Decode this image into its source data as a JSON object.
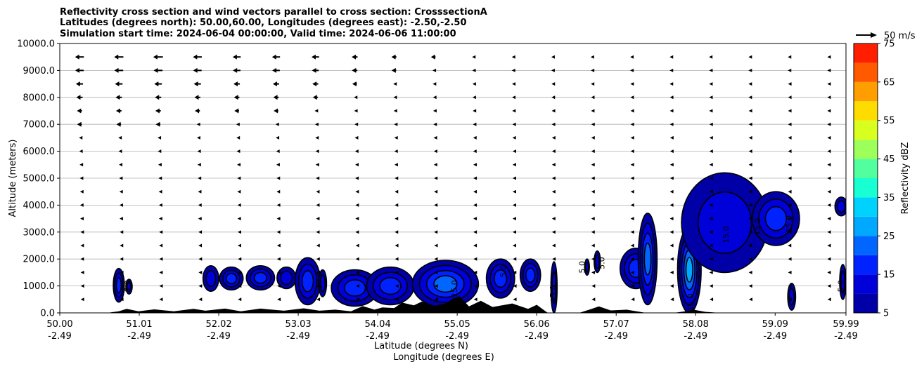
{
  "chart_data": {
    "type": "heatmap",
    "title_lines": [
      "Reflectivity cross section and wind vectors parallel to cross section: CrosssectionA",
      "Latitudes (degrees north): 50.00,60.00, Longitudes (degrees east): -2.50,-2.50",
      "Simulation start time: 2024-06-04 00:00:00, Valid time: 2024-06-06 11:00:00"
    ],
    "ylabel": "Altitude (meters)",
    "xlabel_lines": [
      "Latitude (degrees N)",
      "Longitude (degrees E)"
    ],
    "ylim": [
      0,
      10000
    ],
    "xlim": [
      50.0,
      59.99
    ],
    "y_ticks": [
      "0.0",
      "1000.0",
      "2000.0",
      "3000.0",
      "4000.0",
      "5000.0",
      "6000.0",
      "7000.0",
      "8000.0",
      "9000.0",
      "10000.0"
    ],
    "x_ticks": [
      {
        "lat": "50.00",
        "lon": "-2.49"
      },
      {
        "lat": "51.01",
        "lon": "-2.49"
      },
      {
        "lat": "52.02",
        "lon": "-2.49"
      },
      {
        "lat": "53.03",
        "lon": "-2.49"
      },
      {
        "lat": "54.04",
        "lon": "-2.49"
      },
      {
        "lat": "55.05",
        "lon": "-2.49"
      },
      {
        "lat": "56.06",
        "lon": "-2.49"
      },
      {
        "lat": "57.07",
        "lon": "-2.49"
      },
      {
        "lat": "58.08",
        "lon": "-2.49"
      },
      {
        "lat": "59.09",
        "lon": "-2.49"
      },
      {
        "lat": "59.99",
        "lon": "-2.49"
      }
    ],
    "grid": "horizontal",
    "colorbar": {
      "label": "Reflectivity dBZ",
      "tick_labels": [
        "5",
        "15",
        "25",
        "35",
        "45",
        "55",
        "65",
        "75"
      ],
      "levels": [
        5,
        10,
        15,
        20,
        25,
        30,
        35,
        40,
        45,
        50,
        55,
        60,
        65,
        70,
        75
      ],
      "colors": [
        "#0000a6",
        "#0000d8",
        "#0022ff",
        "#0066ff",
        "#00a8ff",
        "#00d2ff",
        "#17ffd3",
        "#52ff9e",
        "#9dff5a",
        "#d8ff1e",
        "#ffdc00",
        "#ff9e00",
        "#ff5a00",
        "#ff1e00",
        "#a60000"
      ]
    },
    "vector_key": {
      "label": "50 m/s",
      "speed": 50
    },
    "wind_rows": [
      {
        "z": 9500,
        "u": [
          -21,
          -22,
          -23,
          -21,
          -19,
          -19,
          -18,
          -14,
          -12,
          -11,
          -9,
          -7,
          -6,
          -6,
          -5,
          -4,
          -4,
          -3,
          -3,
          -2
        ]
      },
      {
        "z": 9000,
        "u": [
          -20,
          -21,
          -21,
          -20,
          -18,
          -18,
          -16,
          -13,
          -11,
          -10,
          -8,
          -7,
          -6,
          -5,
          -5,
          -4,
          -3,
          -3,
          -3,
          -2
        ]
      },
      {
        "z": 8500,
        "u": [
          -17,
          -18,
          -18,
          -17,
          -15,
          -15,
          -14,
          -11,
          -10,
          -9,
          -7,
          -6,
          -5,
          -5,
          -4,
          -4,
          -3,
          -3,
          -2,
          -2
        ]
      },
      {
        "z": 8000,
        "u": [
          -15,
          -15,
          -15,
          -14,
          -13,
          -13,
          -12,
          -10,
          -9,
          -8,
          -7,
          -6,
          -5,
          -4,
          -4,
          -3,
          -3,
          -3,
          -2,
          -2
        ]
      },
      {
        "z": 7500,
        "u": [
          -12,
          -13,
          -13,
          -12,
          -11,
          -11,
          -10,
          -9,
          -8,
          -7,
          -6,
          -5,
          -4,
          -4,
          -3,
          -3,
          -3,
          -2,
          -2,
          -2
        ]
      },
      {
        "z": 7000,
        "u": [
          -11,
          -11,
          -11,
          -10,
          -9,
          -9,
          -8,
          -7,
          -6,
          -6,
          -5,
          -4,
          -4,
          -3,
          -3,
          -3,
          -2,
          -2,
          -2,
          -2
        ]
      },
      {
        "z": 6500,
        "u": [
          -9,
          -9,
          -9,
          -9,
          -8,
          -8,
          -7,
          -6,
          -5,
          -5,
          -4,
          -4,
          -3,
          -3,
          -3,
          -2,
          -2,
          -2,
          -2,
          -2
        ]
      },
      {
        "z": 6000,
        "u": [
          -8,
          -8,
          -8,
          -7,
          -7,
          -6,
          -6,
          -5,
          -5,
          -4,
          -4,
          -3,
          -3,
          -3,
          -3,
          -2,
          -2,
          -2,
          -2,
          -2
        ]
      },
      {
        "z": 5500,
        "u": [
          -6,
          -6,
          -6,
          -6,
          -5,
          -5,
          -5,
          -4,
          -4,
          -4,
          -3,
          -3,
          -3,
          -3,
          -3,
          -2,
          -2,
          -2,
          -2,
          -2
        ]
      },
      {
        "z": 5000,
        "u": [
          -5,
          -5,
          -5,
          -5,
          -4,
          -4,
          -4,
          -4,
          -3,
          -3,
          -3,
          -3,
          -3,
          -3,
          -3,
          -2,
          -2,
          -2,
          -2,
          -2
        ]
      },
      {
        "z": 4500,
        "u": [
          -4,
          -4,
          -4,
          -4,
          -4,
          -4,
          -3,
          -3,
          -3,
          -3,
          -3,
          -3,
          -3,
          -3,
          -3,
          -3,
          -2,
          -2,
          -2,
          -2
        ]
      },
      {
        "z": 4000,
        "u": [
          -4,
          -3,
          -3,
          -3,
          -3,
          -3,
          -3,
          -3,
          -3,
          -3,
          -3,
          -3,
          -3,
          -3,
          -3,
          -3,
          -3,
          -2,
          -2,
          -2
        ]
      },
      {
        "z": 3500,
        "u": [
          -3,
          -3,
          -3,
          -3,
          -3,
          -3,
          -3,
          -3,
          -3,
          -3,
          -3,
          -3,
          -3,
          -3,
          -3,
          -3,
          -3,
          -3,
          -2,
          -2
        ]
      },
      {
        "z": 3000,
        "u": [
          -2,
          -2,
          -2,
          -2,
          -2,
          -3,
          -3,
          -3,
          -3,
          -3,
          -3,
          -3,
          -3,
          -3,
          -3,
          -3,
          -3,
          -3,
          -3,
          -2
        ]
      },
      {
        "z": 2500,
        "u": [
          -2,
          -2,
          -2,
          -2,
          -2,
          -2,
          -2,
          -2,
          -2,
          -2,
          -3,
          -3,
          -3,
          -3,
          -3,
          -3,
          -3,
          -3,
          -3,
          -2
        ]
      },
      {
        "z": 2000,
        "u": [
          -2,
          -2,
          -1,
          -1,
          -1,
          -2,
          -2,
          -2,
          -2,
          -2,
          -2,
          -2,
          -2,
          -2,
          -2,
          -2,
          -2,
          -2,
          -2,
          -2
        ]
      },
      {
        "z": 1500,
        "u": [
          -1,
          -1,
          -1,
          -1,
          -1,
          -1,
          -1,
          -1,
          -1,
          -2,
          -2,
          -2,
          -2,
          -2,
          -2,
          -2,
          -2,
          -2,
          -2,
          -2
        ]
      },
      {
        "z": 1000,
        "u": [
          -1,
          -1,
          -1,
          -1,
          -1,
          -1,
          -1,
          -1,
          -1,
          -1,
          -1,
          -1,
          -1,
          -1,
          -2,
          -2,
          -2,
          -2,
          -2,
          -2
        ]
      },
      {
        "z": 500,
        "u": [
          -1,
          -1,
          -1,
          -1,
          -1,
          -1,
          -1,
          -1,
          -1,
          -1,
          -1,
          -1,
          -1,
          -1,
          -1,
          -1,
          -1,
          -1,
          -1,
          -1
        ]
      }
    ],
    "reflectivity_cells": [
      {
        "lat": 50.75,
        "z0": 400,
        "z1": 1650,
        "half_w": 0.07,
        "dbz": 15
      },
      {
        "lat": 50.88,
        "z0": 700,
        "z1": 1250,
        "half_w": 0.04,
        "dbz": 10
      },
      {
        "lat": 51.92,
        "z0": 800,
        "z1": 1750,
        "half_w": 0.1,
        "dbz": 12
      },
      {
        "lat": 52.18,
        "z0": 850,
        "z1": 1700,
        "half_w": 0.15,
        "dbz": 15
      },
      {
        "lat": 52.55,
        "z0": 850,
        "z1": 1750,
        "half_w": 0.18,
        "dbz": 15
      },
      {
        "lat": 52.88,
        "z0": 900,
        "z1": 1700,
        "half_w": 0.12,
        "dbz": 12
      },
      {
        "lat": 53.15,
        "z0": 300,
        "z1": 2050,
        "half_w": 0.16,
        "dbz": 18
      },
      {
        "lat": 53.34,
        "z0": 600,
        "z1": 1600,
        "half_w": 0.05,
        "dbz": 10
      },
      {
        "lat": 53.75,
        "z0": 250,
        "z1": 1600,
        "half_w": 0.3,
        "dbz": 15
      },
      {
        "lat": 54.2,
        "z0": 300,
        "z1": 1700,
        "half_w": 0.3,
        "dbz": 18
      },
      {
        "lat": 54.9,
        "z0": 200,
        "z1": 1950,
        "half_w": 0.42,
        "dbz": 20
      },
      {
        "lat": 55.6,
        "z0": 550,
        "z1": 2000,
        "half_w": 0.18,
        "dbz": 15
      },
      {
        "lat": 55.98,
        "z0": 800,
        "z1": 2000,
        "half_w": 0.13,
        "dbz": 15
      },
      {
        "lat": 56.28,
        "z0": 0,
        "z1": 1900,
        "half_w": 0.04,
        "dbz": 12
      },
      {
        "lat": 56.7,
        "z0": 1400,
        "z1": 2000,
        "half_w": 0.03,
        "dbz": 10
      },
      {
        "lat": 56.83,
        "z0": 1500,
        "z1": 2300,
        "half_w": 0.04,
        "dbz": 10
      },
      {
        "lat": 57.32,
        "z0": 900,
        "z1": 2400,
        "half_w": 0.2,
        "dbz": 15
      },
      {
        "lat": 57.47,
        "z0": 300,
        "z1": 3700,
        "half_w": 0.12,
        "dbz": 20
      },
      {
        "lat": 58.0,
        "z0": 0,
        "z1": 3200,
        "half_w": 0.15,
        "dbz": 28
      },
      {
        "lat": 58.45,
        "z0": 1500,
        "z1": 5200,
        "half_w": 0.55,
        "dbz": 12
      },
      {
        "lat": 59.1,
        "z0": 2500,
        "z1": 4500,
        "half_w": 0.3,
        "dbz": 15
      },
      {
        "lat": 59.3,
        "z0": 100,
        "z1": 1100,
        "half_w": 0.05,
        "dbz": 10
      },
      {
        "lat": 59.93,
        "z0": 3600,
        "z1": 4300,
        "half_w": 0.08,
        "dbz": 10
      },
      {
        "lat": 59.95,
        "z0": 500,
        "z1": 1800,
        "half_w": 0.04,
        "dbz": 10
      }
    ],
    "contour_labels": [
      {
        "text": "5.0",
        "lat": 50.9,
        "z": 1000
      },
      {
        "text": "10.0",
        "lat": 53.33,
        "z": 1200
      },
      {
        "text": "15.0",
        "lat": 55.05,
        "z": 900
      },
      {
        "text": "5.0",
        "lat": 55.67,
        "z": 1550
      },
      {
        "text": "5.0",
        "lat": 56.3,
        "z": 800
      },
      {
        "text": "5.0",
        "lat": 56.67,
        "z": 1700
      },
      {
        "text": "5.0",
        "lat": 56.92,
        "z": 1850
      },
      {
        "text": "15.0",
        "lat": 58.05,
        "z": 400
      },
      {
        "text": "15.0",
        "lat": 58.5,
        "z": 2900
      },
      {
        "text": "15.0",
        "lat": 58.9,
        "z": 3200
      },
      {
        "text": "15.0",
        "lat": 59.3,
        "z": 3300
      },
      {
        "text": "5.0",
        "lat": 59.96,
        "z": 1000
      }
    ],
    "terrain": [
      {
        "lat": 50.0,
        "z": 0
      },
      {
        "lat": 50.6,
        "z": 0
      },
      {
        "lat": 50.75,
        "z": 60
      },
      {
        "lat": 50.85,
        "z": 150
      },
      {
        "lat": 51.0,
        "z": 60
      },
      {
        "lat": 51.2,
        "z": 130
      },
      {
        "lat": 51.45,
        "z": 60
      },
      {
        "lat": 51.7,
        "z": 150
      },
      {
        "lat": 51.85,
        "z": 80
      },
      {
        "lat": 52.1,
        "z": 160
      },
      {
        "lat": 52.3,
        "z": 60
      },
      {
        "lat": 52.55,
        "z": 160
      },
      {
        "lat": 52.85,
        "z": 80
      },
      {
        "lat": 53.1,
        "z": 170
      },
      {
        "lat": 53.3,
        "z": 80
      },
      {
        "lat": 53.5,
        "z": 120
      },
      {
        "lat": 53.7,
        "z": 60
      },
      {
        "lat": 53.85,
        "z": 250
      },
      {
        "lat": 54.0,
        "z": 120
      },
      {
        "lat": 54.1,
        "z": 200
      },
      {
        "lat": 54.25,
        "z": 180
      },
      {
        "lat": 54.35,
        "z": 380
      },
      {
        "lat": 54.5,
        "z": 280
      },
      {
        "lat": 54.6,
        "z": 420
      },
      {
        "lat": 54.75,
        "z": 250
      },
      {
        "lat": 54.9,
        "z": 350
      },
      {
        "lat": 55.0,
        "z": 540
      },
      {
        "lat": 55.08,
        "z": 620
      },
      {
        "lat": 55.2,
        "z": 240
      },
      {
        "lat": 55.35,
        "z": 450
      },
      {
        "lat": 55.5,
        "z": 220
      },
      {
        "lat": 55.75,
        "z": 350
      },
      {
        "lat": 55.95,
        "z": 150
      },
      {
        "lat": 56.06,
        "z": 300
      },
      {
        "lat": 56.2,
        "z": 0
      },
      {
        "lat": 56.6,
        "z": 0
      },
      {
        "lat": 56.75,
        "z": 140
      },
      {
        "lat": 56.85,
        "z": 240
      },
      {
        "lat": 57.0,
        "z": 90
      },
      {
        "lat": 57.2,
        "z": 120
      },
      {
        "lat": 57.45,
        "z": 0
      },
      {
        "lat": 57.8,
        "z": 0
      },
      {
        "lat": 57.95,
        "z": 60
      },
      {
        "lat": 58.05,
        "z": 120
      },
      {
        "lat": 58.2,
        "z": 40
      },
      {
        "lat": 58.4,
        "z": 0
      },
      {
        "lat": 59.99,
        "z": 0
      }
    ]
  }
}
